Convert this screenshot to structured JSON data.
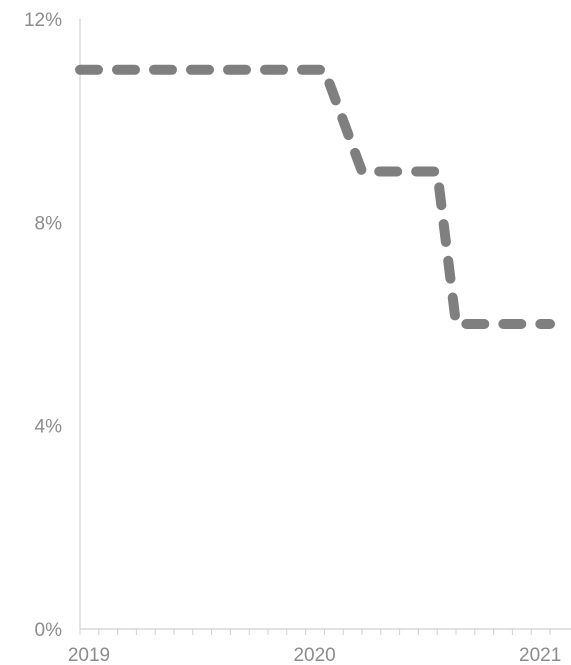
{
  "chart_data": {
    "type": "line",
    "title": "",
    "xlabel": "",
    "ylabel": "",
    "x_ticks": [
      "2019",
      "2020",
      "2021"
    ],
    "y_ticks": [
      "0%",
      "4%",
      "8%",
      "12%"
    ],
    "y_tick_values": [
      0,
      4,
      8,
      12
    ],
    "xlim": [
      "2019-01",
      "2021-02"
    ],
    "ylim": [
      0,
      12
    ],
    "grid": false,
    "series": [
      {
        "color": "#7f7f7f",
        "line_style": "dashed",
        "points": [
          {
            "x": "2019-01",
            "y": 11
          },
          {
            "x": "2020-01",
            "y": 11
          },
          {
            "x": "2020-02",
            "y": 11
          },
          {
            "x": "2020-04",
            "y": 9
          },
          {
            "x": "2020-07",
            "y": 9
          },
          {
            "x": "2020-08",
            "y": 9
          },
          {
            "x": "2020-09",
            "y": 6
          },
          {
            "x": "2021-02",
            "y": 6
          }
        ]
      }
    ]
  }
}
